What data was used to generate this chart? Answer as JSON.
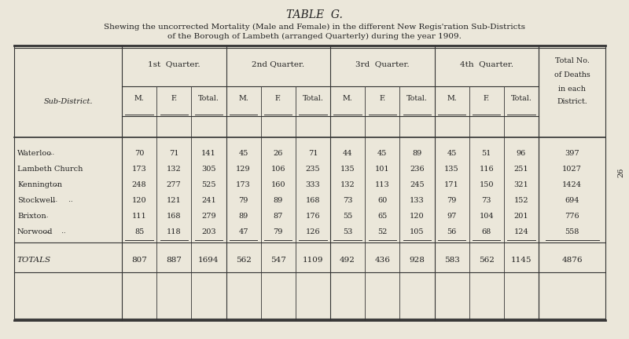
{
  "title": "TABLE  G.",
  "subtitle_line1": "Shewing the uncorrected Mortality (Male and Female) in the different New Regis'ration Sub-Districts",
  "subtitle_line2": "of the Borough of Lambeth (arranged Quarterly) during the year 1909.",
  "col_groups": [
    "1st  Quarter.",
    "2nd Quarter.",
    "3rd  Quarter.",
    "4th  Quarter."
  ],
  "sub_cols": [
    "M.",
    "F.",
    "Total."
  ],
  "last_col": [
    "Total No.",
    "of Deaths",
    "in each",
    "District."
  ],
  "row_header": "Sub-District.",
  "districts": [
    "Waterloo",
    "Lambeth Church",
    "Kennington",
    "Stockwell",
    "Brixton",
    "Norwood"
  ],
  "district_suffix": [
    "  ...",
    "",
    "  ..",
    "  ...    ..",
    "  ..",
    "  ...    .."
  ],
  "data": [
    [
      70,
      71,
      141,
      45,
      26,
      71,
      44,
      45,
      89,
      45,
      51,
      96,
      397
    ],
    [
      173,
      132,
      305,
      129,
      106,
      235,
      135,
      101,
      236,
      135,
      116,
      251,
      1027
    ],
    [
      248,
      277,
      525,
      173,
      160,
      333,
      132,
      113,
      245,
      171,
      150,
      321,
      1424
    ],
    [
      120,
      121,
      241,
      79,
      89,
      168,
      73,
      60,
      133,
      79,
      73,
      152,
      694
    ],
    [
      111,
      168,
      279,
      89,
      87,
      176,
      55,
      65,
      120,
      97,
      104,
      201,
      776
    ],
    [
      85,
      118,
      203,
      47,
      79,
      126,
      53,
      52,
      105,
      56,
      68,
      124,
      558
    ]
  ],
  "district_dots": [
    [
      "..."
    ],
    [],
    [
      ".."
    ],
    [
      "...",
      ".."
    ],
    [
      ".."
    ],
    [
      "...",
      ".."
    ]
  ],
  "totals_label": "Totals",
  "totals": [
    807,
    887,
    1694,
    562,
    547,
    1109,
    492,
    436,
    928,
    583,
    562,
    1145,
    4876
  ],
  "bg_color": "#d8d4c8",
  "table_bg": "#ebe7da",
  "line_color": "#333333",
  "text_color": "#222222",
  "page_num": "26"
}
